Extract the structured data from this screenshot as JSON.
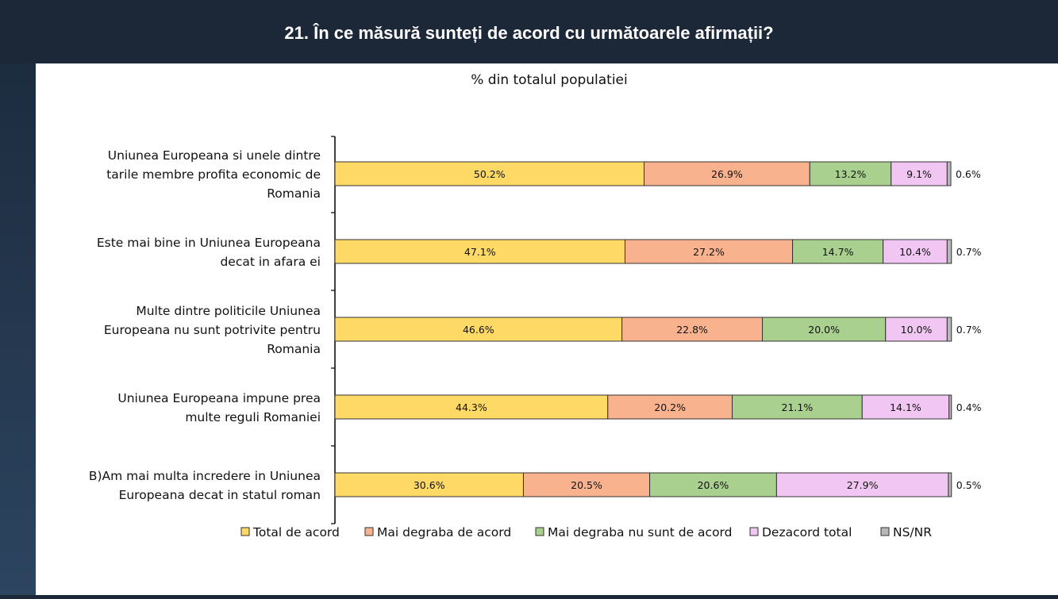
{
  "header": {
    "title": "21. În ce măsură sunteți de acord cu următoarele afirmații?"
  },
  "chart_data": {
    "type": "bar",
    "orientation": "horizontal",
    "stacked": true,
    "subtitle": "% din totalul populatiei",
    "categories": [
      [
        "Uniunea Europeana si unele dintre",
        "tarile membre profita economic de",
        "Romania"
      ],
      [
        "Este mai bine in Uniunea Europeana",
        "decat in afara ei"
      ],
      [
        "Multe dintre politicile Uniunea",
        "Europeana nu sunt potrivite pentru",
        "Romania"
      ],
      [
        "Uniunea Europeana impune prea",
        "multe reguli Romaniei"
      ],
      [
        "B)Am mai multa incredere in Uniunea",
        "Europeana decat in statul roman"
      ]
    ],
    "series": [
      {
        "name": "Total de acord",
        "color": "#ffd966",
        "values": [
          50.2,
          47.1,
          46.6,
          44.3,
          30.6
        ]
      },
      {
        "name": "Mai degraba de acord",
        "color": "#f8b38e",
        "values": [
          26.9,
          27.2,
          22.8,
          20.2,
          20.5
        ]
      },
      {
        "name": "Mai degraba nu sunt de acord",
        "color": "#a9d08e",
        "values": [
          13.2,
          14.7,
          20.0,
          21.1,
          20.6
        ]
      },
      {
        "name": "Dezacord total",
        "color": "#f1c6f3",
        "values": [
          9.1,
          10.4,
          10.0,
          14.1,
          27.9
        ]
      },
      {
        "name": "NS/NR",
        "color": "#b8b8b8",
        "values": [
          0.6,
          0.7,
          0.7,
          0.4,
          0.5
        ]
      }
    ],
    "value_format": "%",
    "xlim": [
      0,
      100
    ],
    "legend_position": "bottom",
    "grid": false
  }
}
